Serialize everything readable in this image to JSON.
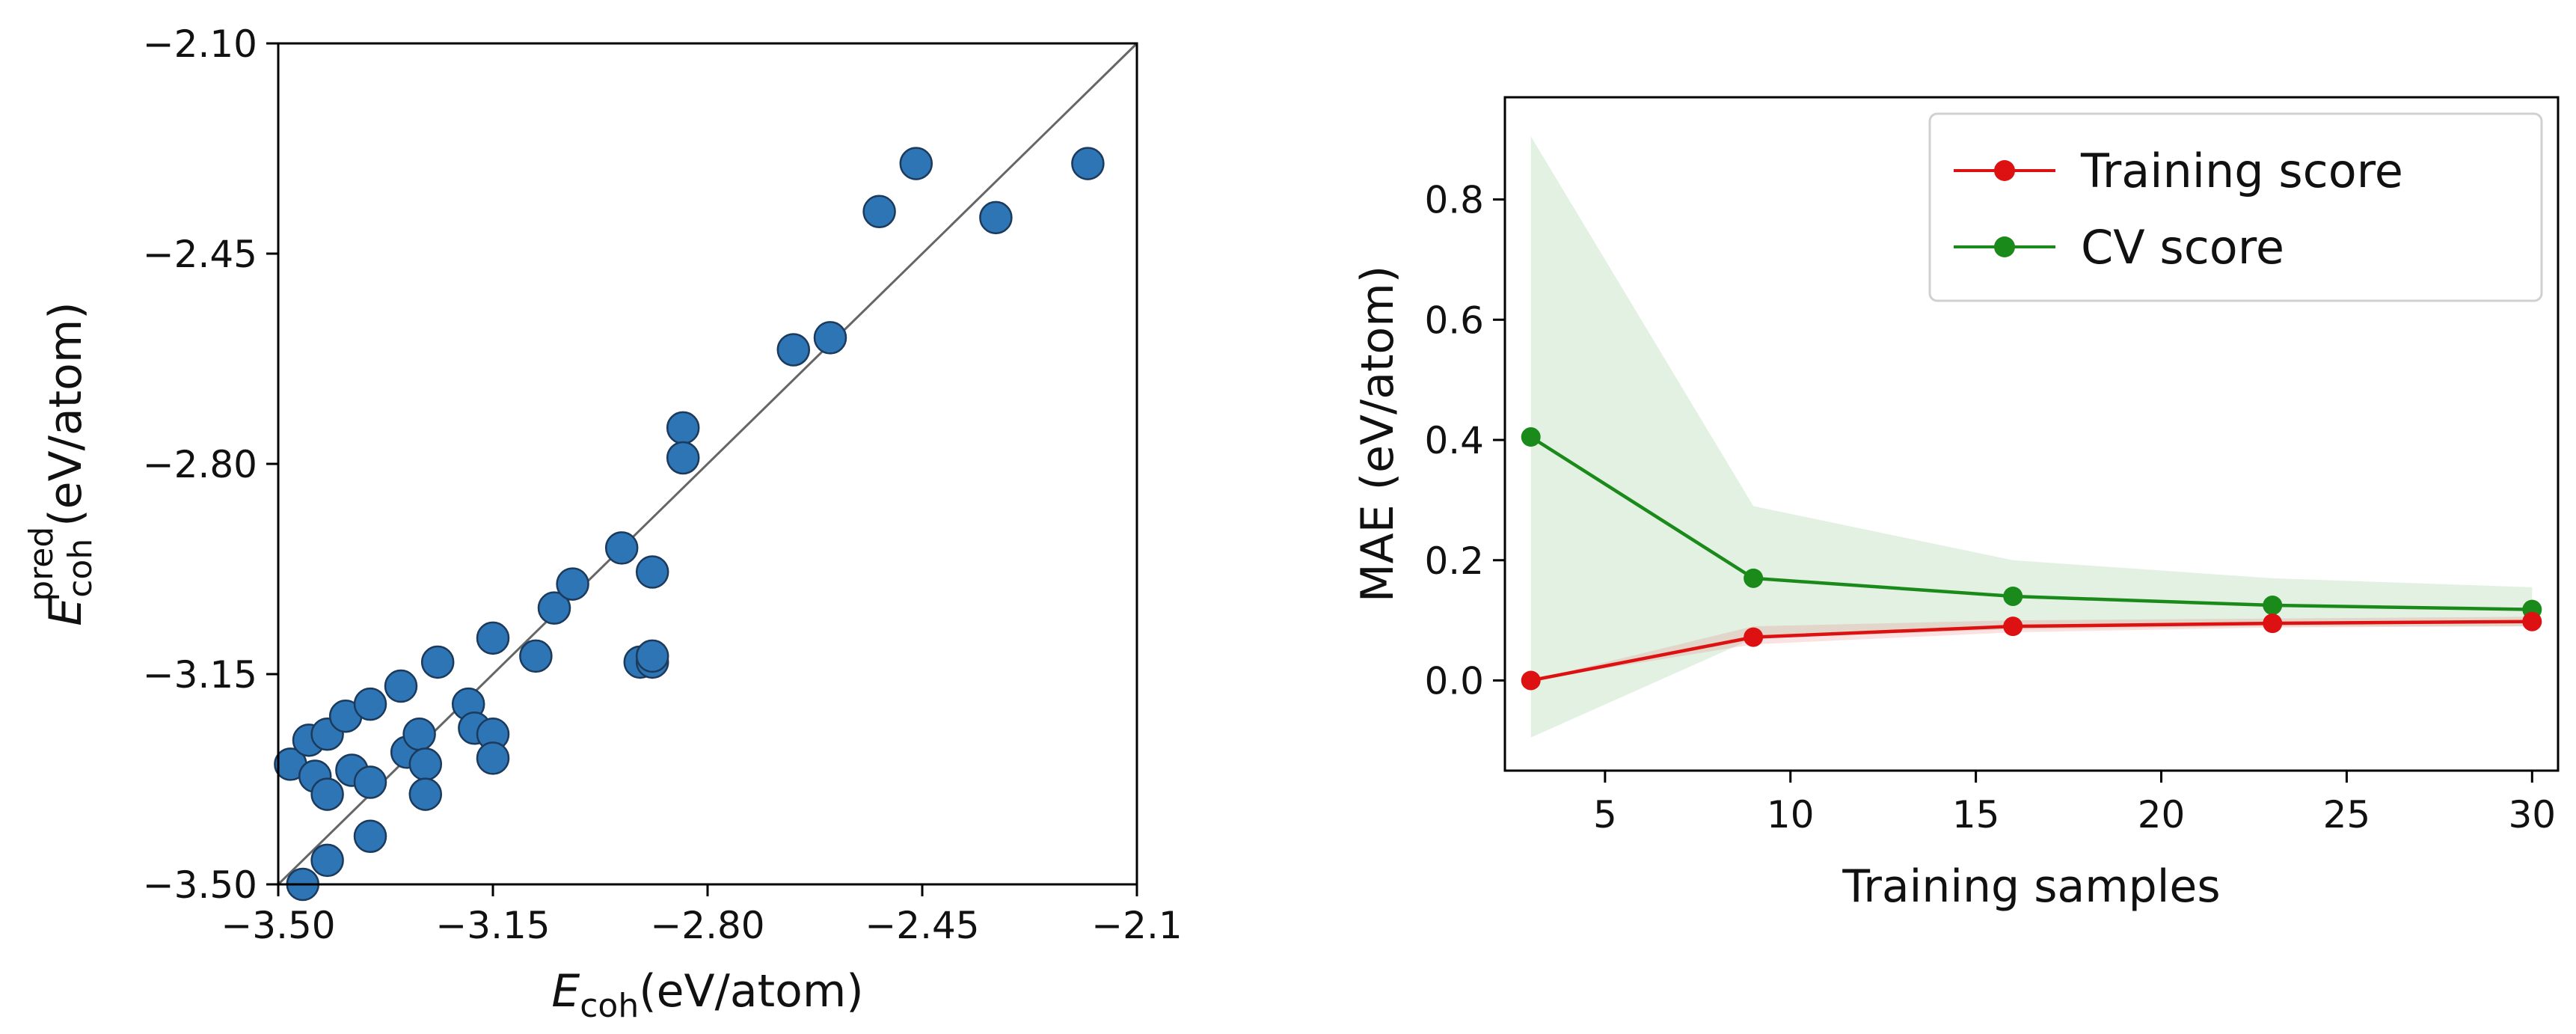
{
  "chart_data": [
    {
      "type": "scatter",
      "title": "",
      "xlabel_main": "E",
      "xlabel_sub": "coh",
      "xlabel_unit": "(eV/atom)",
      "ylabel_main": "E",
      "ylabel_sub": "coh",
      "ylabel_sup": "pred",
      "ylabel_unit": "(eV/atom)",
      "xlim": [
        -3.5,
        -2.1
      ],
      "ylim": [
        -3.5,
        -2.1
      ],
      "xticks": [
        -3.5,
        -3.15,
        -2.8,
        -2.45,
        -2.1
      ],
      "xtick_labels": [
        "−3.50",
        "−3.15",
        "−2.80",
        "−2.45",
        "−2.1"
      ],
      "yticks": [
        -3.5,
        -3.15,
        -2.8,
        -2.45,
        -2.1
      ],
      "ytick_labels": [
        "−3.50",
        "−3.15",
        "−2.80",
        "−2.45",
        "−2.10"
      ],
      "reference_line": "y = x",
      "point_color": "#2e75b6",
      "points": [
        {
          "x": -3.46,
          "y": -3.5
        },
        {
          "x": -3.48,
          "y": -3.3
        },
        {
          "x": -3.45,
          "y": -3.26
        },
        {
          "x": -3.44,
          "y": -3.32
        },
        {
          "x": -3.42,
          "y": -3.25
        },
        {
          "x": -3.42,
          "y": -3.35
        },
        {
          "x": -3.42,
          "y": -3.46
        },
        {
          "x": -3.39,
          "y": -3.22
        },
        {
          "x": -3.38,
          "y": -3.31
        },
        {
          "x": -3.35,
          "y": -3.2
        },
        {
          "x": -3.35,
          "y": -3.33
        },
        {
          "x": -3.35,
          "y": -3.42
        },
        {
          "x": -3.3,
          "y": -3.17
        },
        {
          "x": -3.29,
          "y": -3.28
        },
        {
          "x": -3.27,
          "y": -3.25
        },
        {
          "x": -3.26,
          "y": -3.3
        },
        {
          "x": -3.26,
          "y": -3.35
        },
        {
          "x": -3.24,
          "y": -3.13
        },
        {
          "x": -3.19,
          "y": -3.2
        },
        {
          "x": -3.18,
          "y": -3.24
        },
        {
          "x": -3.15,
          "y": -3.25
        },
        {
          "x": -3.15,
          "y": -3.29
        },
        {
          "x": -3.15,
          "y": -3.09
        },
        {
          "x": -3.08,
          "y": -3.12
        },
        {
          "x": -3.05,
          "y": -3.04
        },
        {
          "x": -3.02,
          "y": -3.0
        },
        {
          "x": -2.94,
          "y": -2.94
        },
        {
          "x": -2.91,
          "y": -3.13
        },
        {
          "x": -2.89,
          "y": -3.13
        },
        {
          "x": -2.89,
          "y": -3.12
        },
        {
          "x": -2.89,
          "y": -2.98
        },
        {
          "x": -2.84,
          "y": -2.74
        },
        {
          "x": -2.84,
          "y": -2.79
        },
        {
          "x": -2.66,
          "y": -2.61
        },
        {
          "x": -2.6,
          "y": -2.59
        },
        {
          "x": -2.52,
          "y": -2.38
        },
        {
          "x": -2.46,
          "y": -2.3
        },
        {
          "x": -2.33,
          "y": -2.39
        },
        {
          "x": -2.18,
          "y": -2.3
        }
      ]
    },
    {
      "type": "line",
      "title": "",
      "xlabel": "Training samples",
      "ylabel": "MAE (eV/atom)",
      "xlim": [
        2.3,
        30.7
      ],
      "ylim": [
        -0.15,
        0.97
      ],
      "xticks": [
        5,
        10,
        15,
        20,
        25,
        30
      ],
      "xtick_labels": [
        "5",
        "10",
        "15",
        "20",
        "25",
        "30"
      ],
      "yticks": [
        0.0,
        0.2,
        0.4,
        0.6,
        0.8
      ],
      "ytick_labels": [
        "0.0",
        "0.2",
        "0.4",
        "0.6",
        "0.8"
      ],
      "legend_position": "top-right",
      "x": [
        3,
        9,
        16,
        23,
        30
      ],
      "series": [
        {
          "name": "Training score",
          "color": "#dd1111",
          "values": [
            0.0,
            0.072,
            0.09,
            0.095,
            0.098
          ],
          "band_lower": [
            0.0,
            0.06,
            0.08,
            0.088,
            0.09
          ],
          "band_upper": [
            0.0,
            0.09,
            0.1,
            0.103,
            0.106
          ]
        },
        {
          "name": "CV score",
          "color": "#1a8a1a",
          "values": [
            0.405,
            0.17,
            0.14,
            0.125,
            0.118
          ],
          "band_lower": [
            -0.095,
            0.07,
            0.085,
            0.09,
            0.09
          ],
          "band_upper": [
            0.905,
            0.29,
            0.2,
            0.17,
            0.155
          ]
        }
      ]
    }
  ]
}
